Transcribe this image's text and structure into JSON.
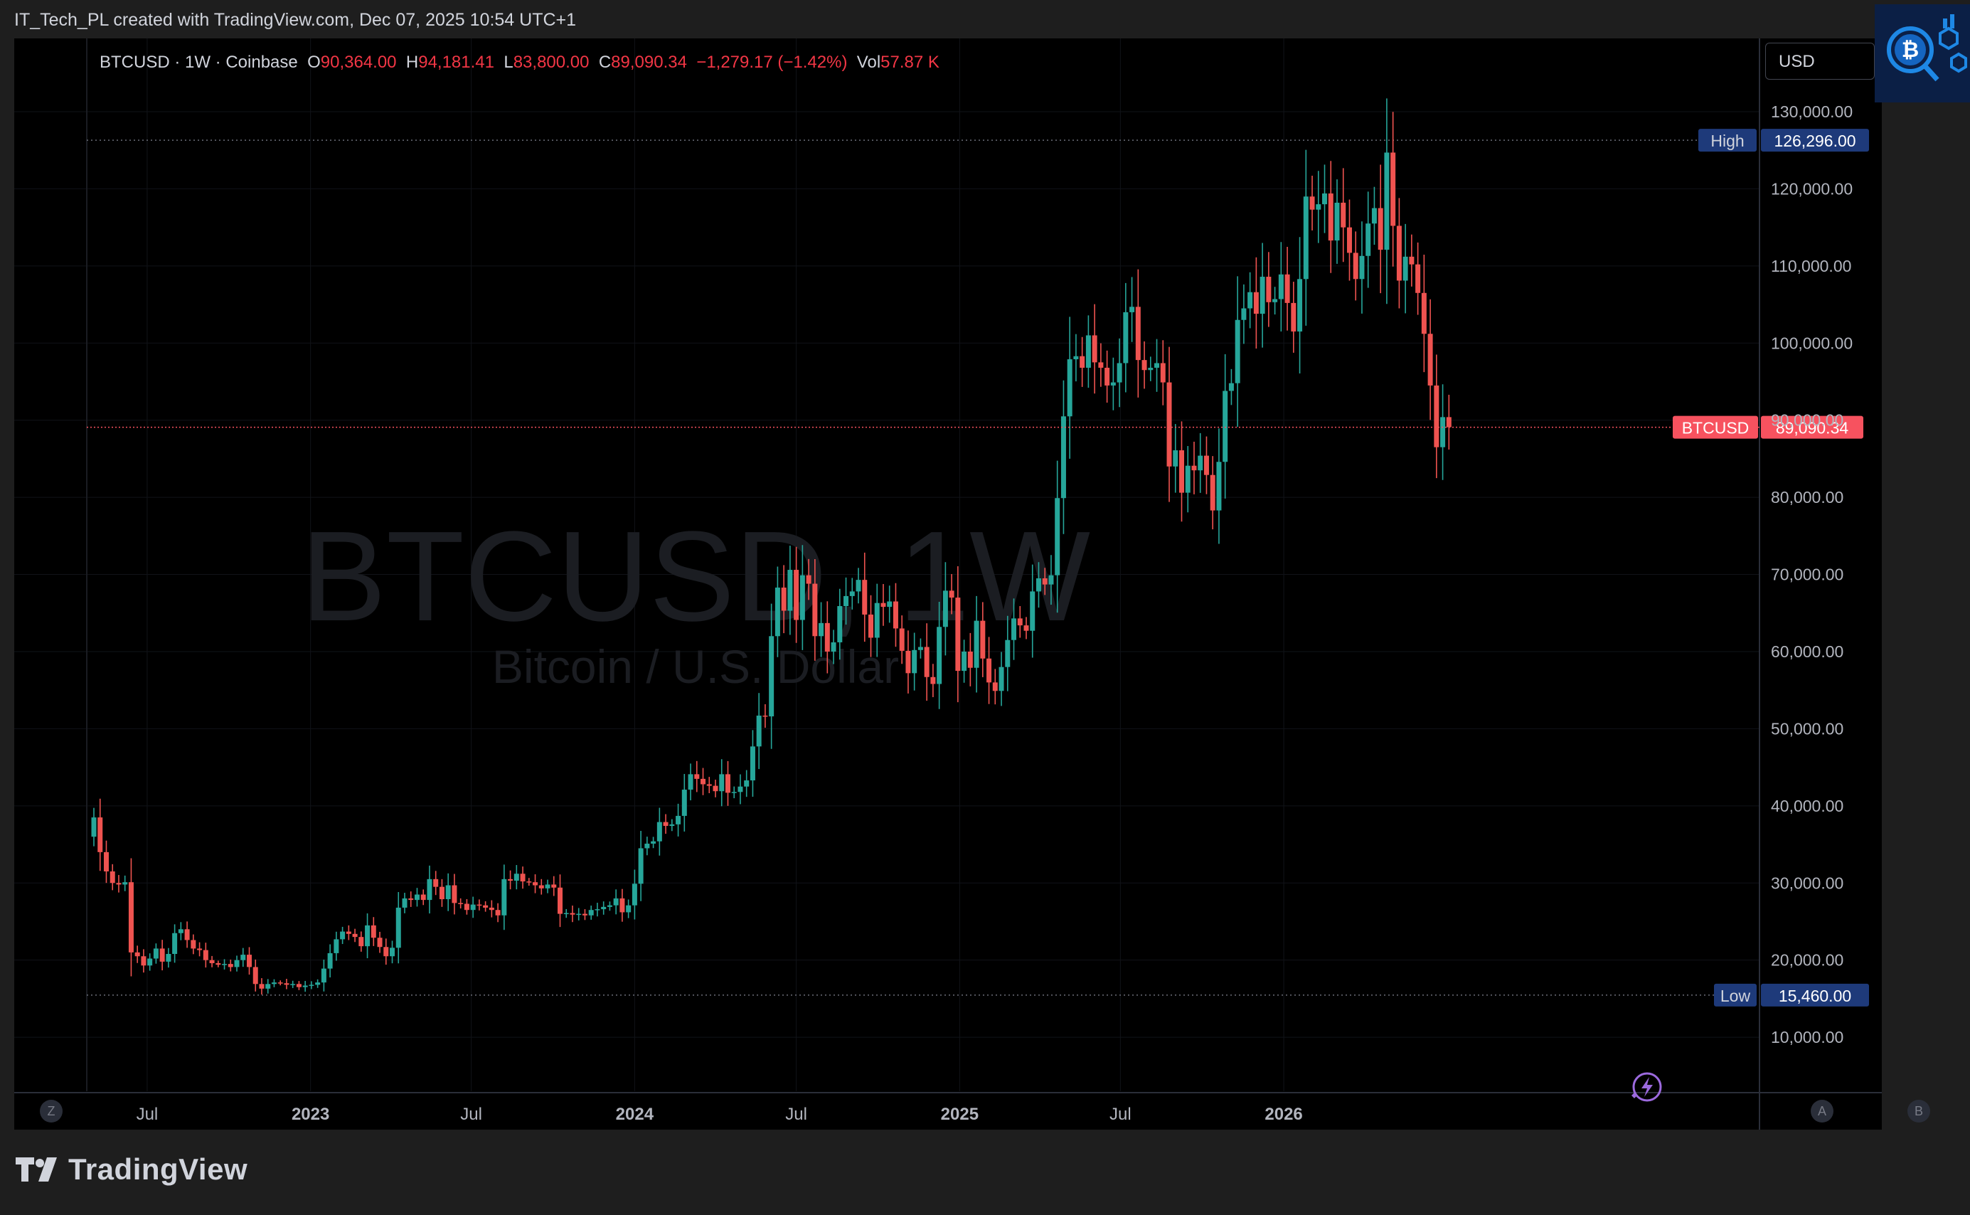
{
  "caption": "IT_Tech_PL created with TradingView.com, Dec 07, 2025 10:54 UTC+1",
  "legend": {
    "symbol": "BTCUSD · 1W · Coinbase",
    "o_label": "O",
    "o_value": "90,364.00",
    "h_label": "H",
    "h_value": "94,181.41",
    "l_label": "L",
    "l_value": "83,800.00",
    "c_label": "C",
    "c_value": "89,090.34",
    "change": "−1,279.17 (−1.42%)",
    "vol_label": "Vol",
    "vol_value": "57.87 K"
  },
  "currency": "USD",
  "watermark": {
    "main": "BTCUSD, 1W",
    "sub": "Bitcoin / U.S. Dollar"
  },
  "footer_brand": "TradingView",
  "axis_buttons": {
    "left": "Z",
    "right_a": "A",
    "right_b": "B"
  },
  "colors": {
    "up": "#26a69a",
    "down": "#ef5350",
    "background": "#000000",
    "price_line": "#f7525f",
    "label_bg": "#1e3a7a"
  },
  "chart_data": {
    "type": "candlestick",
    "title": "BTCUSD · 1W · Coinbase",
    "x_start": "2022-05-02",
    "x_tick_labels": [
      {
        "text": "Jul",
        "date": "2022-07-01",
        "bold": false
      },
      {
        "text": "2023",
        "date": "2023-01-01",
        "bold": true
      },
      {
        "text": "Jul",
        "date": "2023-07-01",
        "bold": false
      },
      {
        "text": "2024",
        "date": "2024-01-01",
        "bold": true
      },
      {
        "text": "Jul",
        "date": "2024-07-01",
        "bold": false
      },
      {
        "text": "2025",
        "date": "2025-01-01",
        "bold": true
      },
      {
        "text": "Jul",
        "date": "2025-07-01",
        "bold": false
      },
      {
        "text": "2026",
        "date": "2026-01-01",
        "bold": true
      }
    ],
    "y_ticks": [
      "130,000.00",
      "120,000.00",
      "110,000.00",
      "100,000.00",
      "90,000.00",
      "80,000.00",
      "70,000.00",
      "60,000.00",
      "50,000.00",
      "40,000.00",
      "30,000.00",
      "20,000.00",
      "10,000.00"
    ],
    "y_tick_values": [
      130000,
      120000,
      110000,
      100000,
      90000,
      80000,
      70000,
      60000,
      50000,
      40000,
      30000,
      20000,
      10000
    ],
    "ylim": [
      3000,
      139500
    ],
    "high": {
      "label": "High",
      "value": 126296,
      "text": "126,296.00"
    },
    "low": {
      "label": "Low",
      "value": 15460,
      "text": "15,460.00"
    },
    "last": {
      "label": "BTCUSD",
      "value": 89090.34,
      "text": "89,090.34"
    },
    "series": [
      {
        "name": "BTCUSD",
        "closes": [
          38500,
          34000,
          31500,
          30000,
          29800,
          30100,
          21000,
          20500,
          19300,
          20200,
          21500,
          19800,
          20800,
          23500,
          24000,
          22600,
          21500,
          21300,
          20000,
          19600,
          19400,
          19500,
          19100,
          20000,
          20700,
          19100,
          16900,
          16300,
          16900,
          17100,
          17000,
          16800,
          16900,
          16500,
          16700,
          16800,
          17100,
          18900,
          20900,
          22700,
          23700,
          23400,
          23000,
          21800,
          24500,
          22900,
          21700,
          20500,
          21600,
          26800,
          28000,
          27800,
          28500,
          27800,
          30500,
          29500,
          27900,
          29700,
          27400,
          27300,
          26500,
          27200,
          27100,
          26800,
          26500,
          25800,
          30500,
          30300,
          31200,
          30200,
          30100,
          29700,
          29300,
          29800,
          29400,
          26000,
          26100,
          25900,
          26000,
          25800,
          26500,
          26600,
          26900,
          27100,
          28000,
          26200,
          27100,
          29900,
          34500,
          35100,
          35400,
          37900,
          37400,
          37600,
          38700,
          42100,
          44100,
          43500,
          42800,
          42600,
          41900,
          44100,
          41700,
          41800,
          42500,
          43300,
          47700,
          51700,
          51600,
          62000,
          68300,
          65300,
          70600,
          64100,
          69900,
          68800,
          62000,
          63700,
          60000,
          61200,
          65900,
          67200,
          67800,
          69300,
          64800,
          61800,
          66300,
          65800,
          66500,
          63000,
          60100,
          57200,
          60200,
          60600,
          56700,
          55800,
          63200,
          67900,
          67000,
          57500,
          60000,
          57900,
          64000,
          59100,
          56000,
          54900,
          58000,
          61500,
          64300,
          63400,
          62700,
          67800,
          69500,
          68700,
          69900,
          79900,
          90500,
          97900,
          98300,
          96800,
          101000,
          97500,
          96800,
          94500,
          94900,
          97400,
          104000,
          104700,
          97800,
          96500,
          96800,
          97400,
          94900,
          84000,
          86100,
          80600,
          84100,
          83500,
          85400,
          82900,
          78300,
          84600,
          93800,
          94800,
          103000,
          104500,
          106600,
          103800,
          108600,
          105300,
          105700,
          108900,
          105200,
          101500,
          108300,
          119000,
          117300,
          118000,
          119400,
          113300,
          118200,
          115000,
          111700,
          108300,
          111300,
          115500,
          117500,
          112100,
          124700,
          115200,
          108100,
          111200,
          110200,
          106500,
          101200,
          94500,
          86500,
          90400,
          89090
        ]
      }
    ]
  }
}
